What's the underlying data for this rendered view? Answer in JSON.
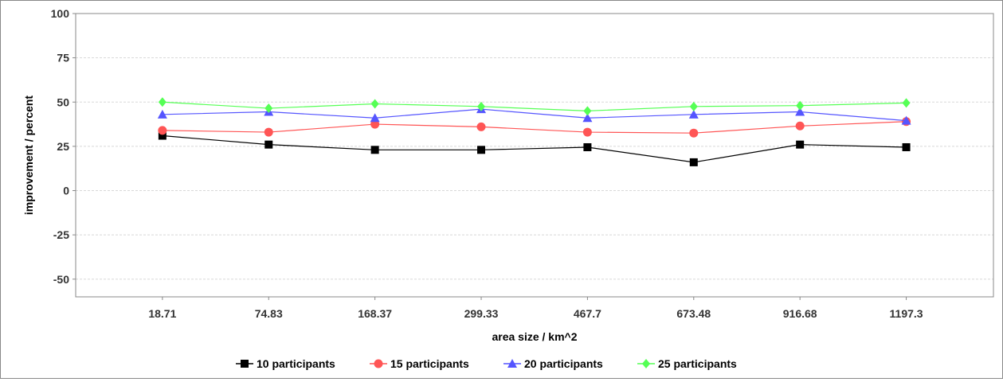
{
  "chart_data": {
    "type": "line",
    "title": "",
    "xlabel": "area size / km^2",
    "ylabel": "improvement / percent",
    "categories": [
      "18.71",
      "74.83",
      "168.37",
      "299.33",
      "467.7",
      "673.48",
      "916.68",
      "1197.3"
    ],
    "ylim": [
      -60,
      100
    ],
    "yticks": [
      100,
      75,
      50,
      25,
      0,
      -25,
      -50
    ],
    "grid": true,
    "legend_position": "bottom",
    "series": [
      {
        "name": "10 participants",
        "color": "#000000",
        "marker": "square",
        "values": [
          31,
          26,
          23,
          23,
          24.5,
          16,
          26,
          24.5
        ]
      },
      {
        "name": "15 participants",
        "color": "#ff5555",
        "marker": "circle",
        "values": [
          34,
          33,
          37.5,
          36,
          33,
          32.5,
          36.5,
          39
        ]
      },
      {
        "name": "20 participants",
        "color": "#5555ff",
        "marker": "triangle",
        "values": [
          43,
          44.5,
          41,
          46,
          41,
          43,
          44.5,
          39.5
        ]
      },
      {
        "name": "25 participants",
        "color": "#55ff55",
        "marker": "diamond",
        "values": [
          50,
          46.5,
          49,
          47.5,
          45,
          47.5,
          48,
          49.5
        ]
      }
    ]
  }
}
